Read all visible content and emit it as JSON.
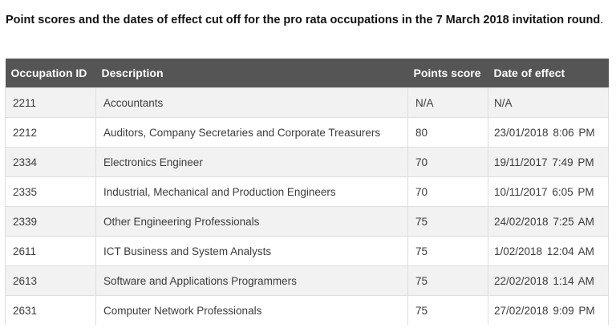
{
  "caption": {
    "text": "Point scores and the dates of effect cut off for the pro rata occupations in the 7 March 2018 invitation round",
    "end_punct": "."
  },
  "table": {
    "headers": [
      "Occupation ID",
      "Description",
      "Points score",
      "Date of effect"
    ],
    "rows": [
      [
        "2211",
        "Accountants",
        "N/A",
        "N/A"
      ],
      [
        "2212",
        "Auditors, Company Secretaries and Corporate Treasurers",
        "80",
        "23/01/2018  8:06 PM"
      ],
      [
        "2334",
        "Electronics Engineer",
        "70",
        "19/11/2017  7:49 PM"
      ],
      [
        "2335",
        "Industrial, Mechanical and Production Engineers",
        "70",
        "10/11/2017  6:05 PM"
      ],
      [
        "2339",
        "Other Engineering Professionals",
        "75",
        "24/02/2018  7:25 AM"
      ],
      [
        "2611",
        "ICT Business and System Analysts",
        "75",
        "1/02/2018  12:04 AM"
      ],
      [
        "2613",
        "Software and Applications Programmers",
        "75",
        "22/02/2018  1:14 AM"
      ],
      [
        "2631",
        "Computer Network Professionals",
        "75",
        "27/02/2018  9:09 PM"
      ]
    ]
  }
}
